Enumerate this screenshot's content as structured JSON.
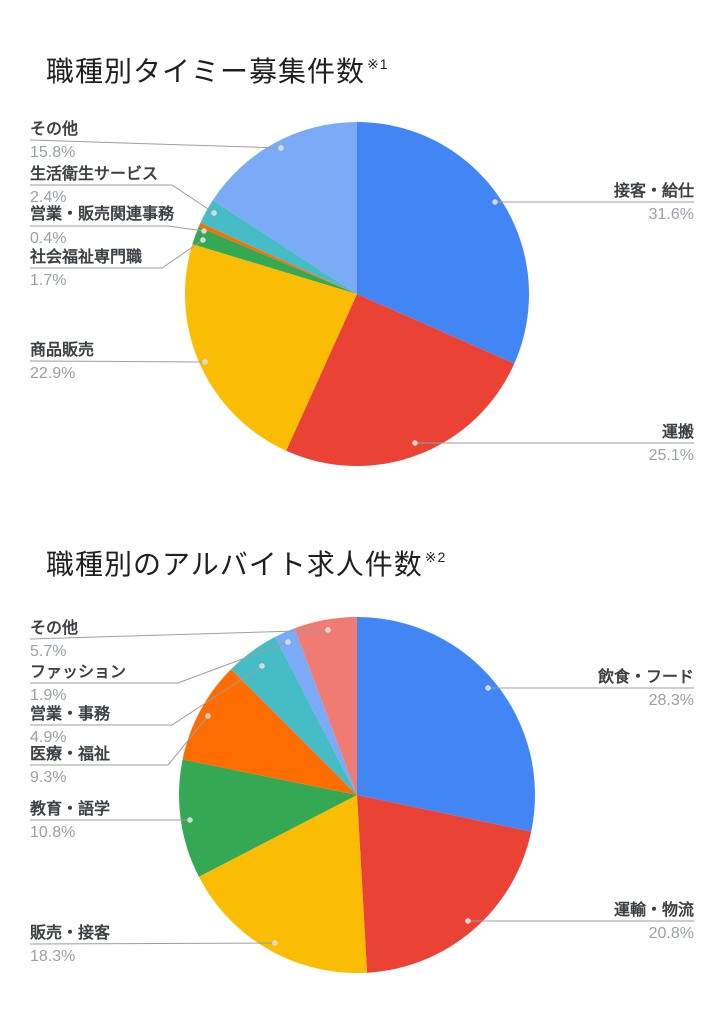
{
  "page": {
    "background": "#ffffff"
  },
  "colors": {
    "category_label": "#3c4043",
    "percent_label": "#9aa0a6",
    "leader_line": "#9e9e9e",
    "title": "#1f1f1f"
  },
  "chart_data": [
    {
      "type": "pie",
      "title": "職種別タイミー募集件数",
      "title_note": "※1",
      "legend_position": "none",
      "labels": "outside callouts with leader lines, percent shown under category name",
      "units": "%",
      "start_angle_deg": 0,
      "direction": "clockwise",
      "slices": [
        {
          "label": "接客・給仕",
          "value": 31.6,
          "pct_label": "31.6%",
          "color": "#4285F4",
          "label_side": "right"
        },
        {
          "label": "運搬",
          "value": 25.1,
          "pct_label": "25.1%",
          "color": "#EA4335",
          "label_side": "right"
        },
        {
          "label": "商品販売",
          "value": 22.9,
          "pct_label": "22.9%",
          "color": "#FBBC04",
          "label_side": "left"
        },
        {
          "label": "社会福祉専門職",
          "value": 1.7,
          "pct_label": "1.7%",
          "color": "#34A853",
          "label_side": "left"
        },
        {
          "label": "営業・販売関連事務",
          "value": 0.4,
          "pct_label": "0.4%",
          "color": "#FF6D01",
          "label_side": "left"
        },
        {
          "label": "生活衛生サービス",
          "value": 2.4,
          "pct_label": "2.4%",
          "color": "#46BDC6",
          "label_side": "left"
        },
        {
          "label": "その他",
          "value": 15.8,
          "pct_label": "15.8%",
          "color": "#7BAAF7",
          "label_side": "left"
        }
      ]
    },
    {
      "type": "pie",
      "title": "職種別のアルバイト求人件数",
      "title_note": "※2",
      "legend_position": "none",
      "labels": "outside callouts with leader lines, percent shown under category name",
      "units": "%",
      "start_angle_deg": 0,
      "direction": "clockwise",
      "slices": [
        {
          "label": "飲食・フード",
          "value": 28.3,
          "pct_label": "28.3%",
          "color": "#4285F4",
          "label_side": "right"
        },
        {
          "label": "運輸・物流",
          "value": 20.8,
          "pct_label": "20.8%",
          "color": "#EA4335",
          "label_side": "right"
        },
        {
          "label": "販売・接客",
          "value": 18.3,
          "pct_label": "18.3%",
          "color": "#FBBC04",
          "label_side": "left"
        },
        {
          "label": "教育・語学",
          "value": 10.8,
          "pct_label": "10.8%",
          "color": "#34A853",
          "label_side": "left"
        },
        {
          "label": "医療・福祉",
          "value": 9.3,
          "pct_label": "9.3%",
          "color": "#FF6D01",
          "label_side": "left"
        },
        {
          "label": "営業・事務",
          "value": 4.9,
          "pct_label": "4.9%",
          "color": "#46BDC6",
          "label_side": "left"
        },
        {
          "label": "ファッション",
          "value": 1.9,
          "pct_label": "1.9%",
          "color": "#7BAAF7",
          "label_side": "left"
        },
        {
          "label": "その他",
          "value": 5.7,
          "pct_label": "5.7%",
          "color": "#F07B72",
          "label_side": "left"
        }
      ]
    }
  ]
}
